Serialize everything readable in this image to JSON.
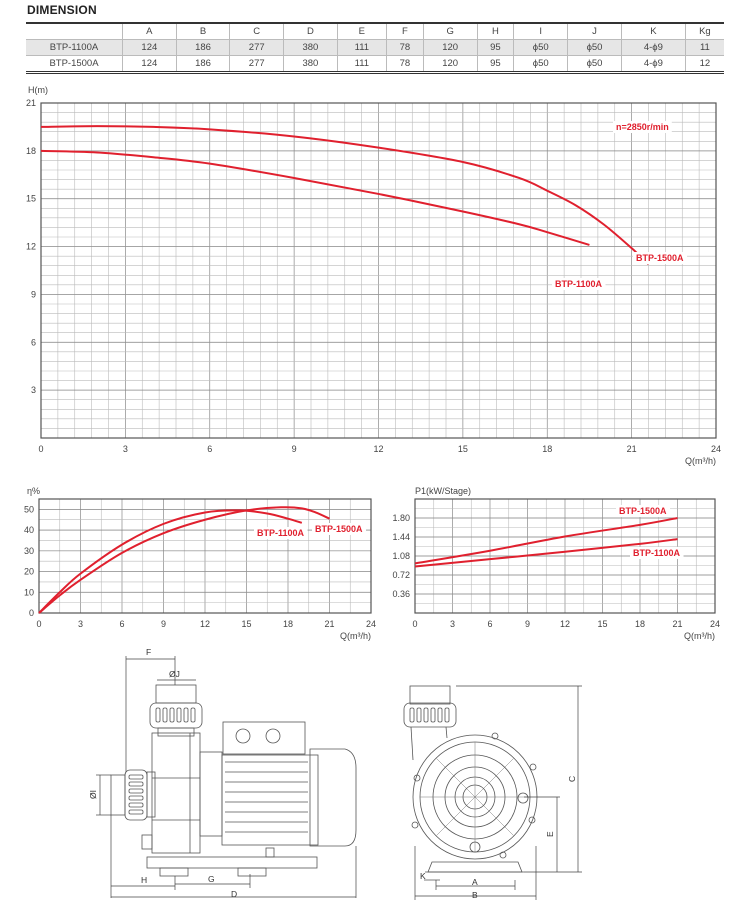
{
  "section_title": "DIMENSION",
  "table": {
    "headers": [
      "",
      "A",
      "B",
      "C",
      "D",
      "E",
      "F",
      "G",
      "H",
      "I",
      "J",
      "K",
      "Kg"
    ],
    "rows": [
      [
        "BTP-1100A",
        "124",
        "186",
        "277",
        "380",
        "111",
        "78",
        "120",
        "95",
        "ϕ50",
        "ϕ50",
        "4-ϕ9",
        "11"
      ],
      [
        "BTP-1500A",
        "124",
        "186",
        "277",
        "380",
        "111",
        "78",
        "120",
        "95",
        "ϕ50",
        "ϕ50",
        "4-ϕ9",
        "12"
      ]
    ]
  },
  "colors": {
    "curve": "#e0202e",
    "grid_major": "#888888",
    "grid_minor": "#bbbbbb",
    "frame": "#555555"
  },
  "chart_data": [
    {
      "type": "line",
      "title": "Head curve",
      "annotation": "n=2850r/min",
      "xlabel": "Q(m³/h)",
      "ylabel": "H(m)",
      "xlim": [
        0,
        24
      ],
      "ylim": [
        0,
        21
      ],
      "xticks": [
        0,
        3,
        6,
        9,
        12,
        15,
        18,
        21,
        24
      ],
      "yticks": [
        3,
        6,
        9,
        12,
        15,
        18,
        21
      ],
      "grid": true,
      "series": [
        {
          "name": "BTP-1500A",
          "x": [
            0,
            2,
            4,
            6,
            9,
            12,
            15,
            17,
            18,
            19,
            20,
            21,
            21.6
          ],
          "y": [
            19.5,
            19.55,
            19.5,
            19.35,
            18.9,
            18.2,
            17.3,
            16.3,
            15.5,
            14.6,
            13.4,
            11.9,
            10.9
          ]
        },
        {
          "name": "BTP-1100A",
          "x": [
            0,
            2,
            4,
            6,
            9,
            12,
            15,
            17,
            18,
            19.5
          ],
          "y": [
            18.0,
            17.9,
            17.6,
            17.2,
            16.3,
            15.3,
            14.2,
            13.4,
            12.9,
            12.1
          ]
        }
      ]
    },
    {
      "type": "line",
      "title": "Efficiency curve",
      "xlabel": "Q(m³/h)",
      "ylabel": "η%",
      "xlim": [
        0,
        24
      ],
      "ylim": [
        0,
        55
      ],
      "xticks": [
        0,
        3,
        6,
        9,
        12,
        15,
        18,
        21,
        24
      ],
      "yticks": [
        0,
        10,
        20,
        30,
        40,
        50
      ],
      "grid": true,
      "series": [
        {
          "name": "BTP-1100A",
          "x": [
            0,
            1.5,
            3,
            6,
            9,
            12,
            14.5,
            16.5,
            18,
            19
          ],
          "y": [
            0,
            10,
            19,
            33,
            43,
            48.5,
            49.5,
            48,
            45.5,
            43.5
          ]
        },
        {
          "name": "BTP-1500A",
          "x": [
            0,
            1.5,
            3,
            6,
            9,
            12,
            15,
            17.5,
            19,
            20,
            21
          ],
          "y": [
            0,
            8.5,
            16,
            29,
            38.5,
            45,
            49.5,
            51,
            50.5,
            48.5,
            45.5
          ]
        }
      ]
    },
    {
      "type": "line",
      "title": "Power curve",
      "xlabel": "Q(m³/h)",
      "ylabel": "P1(kW/Stage)",
      "xlim": [
        0,
        24
      ],
      "ylim": [
        0,
        2.16
      ],
      "xticks": [
        0,
        3,
        6,
        9,
        12,
        15,
        18,
        21,
        24
      ],
      "yticks": [
        0.36,
        0.72,
        1.08,
        1.44,
        1.8
      ],
      "grid": true,
      "series": [
        {
          "name": "BTP-1500A",
          "x": [
            0,
            6,
            12,
            18,
            21
          ],
          "y": [
            0.94,
            1.18,
            1.45,
            1.67,
            1.8
          ]
        },
        {
          "name": "BTP-1100A",
          "x": [
            0,
            6,
            12,
            18,
            21
          ],
          "y": [
            0.88,
            1.02,
            1.16,
            1.31,
            1.4
          ]
        }
      ]
    }
  ],
  "labels": {
    "head_1500": "BTP-1500A",
    "head_1100": "BTP-1100A",
    "eff_1100": "BTP-1100A",
    "eff_1500": "BTP-1500A",
    "pow_1500": "BTP-1500A",
    "pow_1100": "BTP-1100A"
  },
  "drawing": {
    "side_view_dims": [
      "F",
      "ØJ",
      "ØI",
      "H",
      "G",
      "D"
    ],
    "front_view_dims": [
      "C",
      "E",
      "K",
      "A",
      "B"
    ]
  }
}
